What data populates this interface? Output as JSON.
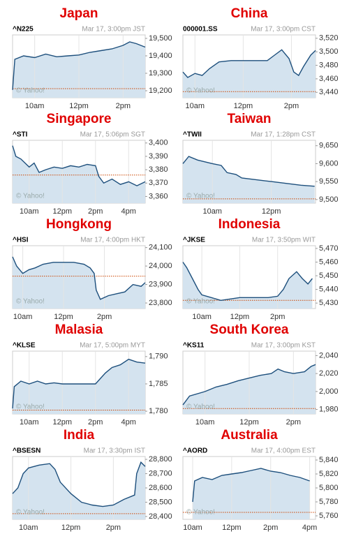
{
  "chart_data": [
    {
      "type": "area",
      "title": "Japan",
      "ticker": "^N225",
      "timestamp": "Mar 17, 3:00pm JST",
      "watermark": "© Yahoo!",
      "x": [
        9,
        9.1,
        9.5,
        10,
        10.5,
        11,
        11.5,
        12,
        12.5,
        13,
        13.5,
        14,
        14.3,
        14.6,
        15
      ],
      "values": [
        19205,
        19380,
        19400,
        19390,
        19410,
        19395,
        19400,
        19405,
        19420,
        19430,
        19440,
        19460,
        19480,
        19470,
        19450
      ],
      "previous_close": 19212,
      "xlim": [
        9,
        15
      ],
      "xticks": [
        {
          "value": 10,
          "label": "10am"
        },
        {
          "value": 12,
          "label": "12pm"
        },
        {
          "value": 14,
          "label": "2pm"
        }
      ],
      "ylim": [
        19160,
        19520
      ],
      "yticks": [
        {
          "value": 19200,
          "label": "19,200"
        },
        {
          "value": 19300,
          "label": "19,300"
        },
        {
          "value": 19400,
          "label": "19,400"
        },
        {
          "value": 19500,
          "label": "19,500"
        }
      ]
    },
    {
      "type": "area",
      "title": "China",
      "ticker": "000001.SS",
      "timestamp": "Mar 17, 3:00pm CST",
      "watermark": "© Yahoo!",
      "x": [
        9.5,
        9.7,
        10,
        10.3,
        10.6,
        11,
        11.5,
        12,
        12.5,
        13,
        13.3,
        13.6,
        13.9,
        14.1,
        14.3,
        14.5,
        14.8,
        15
      ],
      "values": [
        3470,
        3462,
        3468,
        3465,
        3475,
        3485,
        3487,
        3487,
        3487,
        3487,
        3495,
        3503,
        3490,
        3470,
        3465,
        3478,
        3495,
        3502
      ],
      "previous_close": 3441,
      "xlim": [
        9.5,
        15
      ],
      "xticks": [
        {
          "value": 10,
          "label": "10am"
        },
        {
          "value": 12,
          "label": "12pm"
        },
        {
          "value": 14,
          "label": "2pm"
        }
      ],
      "ylim": [
        3432,
        3525
      ],
      "yticks": [
        {
          "value": 3440,
          "label": "3,440"
        },
        {
          "value": 3460,
          "label": "3,460"
        },
        {
          "value": 3480,
          "label": "3,480"
        },
        {
          "value": 3500,
          "label": "3,500"
        },
        {
          "value": 3520,
          "label": "3,520"
        }
      ]
    },
    {
      "type": "area",
      "title": "Singapore",
      "ticker": "^STI",
      "timestamp": "Mar 17, 5:06pm SGT",
      "watermark": "© Yahoo!",
      "x": [
        9,
        9.2,
        9.5,
        10,
        10.3,
        10.6,
        11,
        11.5,
        12,
        12.5,
        13,
        13.5,
        14,
        14.2,
        14.5,
        15,
        15.5,
        16,
        16.5,
        17
      ],
      "values": [
        3398,
        3390,
        3388,
        3382,
        3385,
        3378,
        3380,
        3382,
        3381,
        3383,
        3382,
        3384,
        3383,
        3375,
        3370,
        3373,
        3369,
        3371,
        3368,
        3371
      ],
      "previous_close": 3376,
      "xlim": [
        9,
        17
      ],
      "xticks": [
        {
          "value": 10,
          "label": "10am"
        },
        {
          "value": 12,
          "label": "12pm"
        },
        {
          "value": 14,
          "label": "2pm"
        },
        {
          "value": 16,
          "label": "4pm"
        }
      ],
      "ylim": [
        3355,
        3402
      ],
      "yticks": [
        {
          "value": 3360,
          "label": "3,360"
        },
        {
          "value": 3370,
          "label": "3,370"
        },
        {
          "value": 3380,
          "label": "3,380"
        },
        {
          "value": 3390,
          "label": "3,390"
        },
        {
          "value": 3400,
          "label": "3,400"
        }
      ]
    },
    {
      "type": "area",
      "title": "Taiwan",
      "ticker": "^TWII",
      "timestamp": "Mar 17, 1:28pm CST",
      "watermark": "© Yahoo!",
      "x": [
        9,
        9.2,
        9.5,
        10,
        10.3,
        10.5,
        10.8,
        11,
        11.5,
        12,
        12.5,
        13,
        13.47
      ],
      "values": [
        9600,
        9620,
        9610,
        9600,
        9595,
        9575,
        9570,
        9560,
        9555,
        9550,
        9545,
        9540,
        9537
      ],
      "previous_close": 9502,
      "xlim": [
        9,
        13.5
      ],
      "xticks": [
        {
          "value": 10,
          "label": "10am"
        },
        {
          "value": 12,
          "label": "12pm"
        }
      ],
      "ylim": [
        9490,
        9665
      ],
      "yticks": [
        {
          "value": 9500,
          "label": "9,500"
        },
        {
          "value": 9550,
          "label": "9,550"
        },
        {
          "value": 9600,
          "label": "9,600"
        },
        {
          "value": 9650,
          "label": "9,650"
        }
      ]
    },
    {
      "type": "area",
      "title": "Hongkong",
      "ticker": "^HSI",
      "timestamp": "Mar 17, 4:00pm HKT",
      "watermark": "© Yahoo!",
      "x": [
        9.5,
        9.7,
        10,
        10.3,
        10.6,
        11,
        11.5,
        12,
        12.5,
        13,
        13.3,
        13.5,
        13.6,
        13.8,
        14.2,
        14.6,
        15,
        15.4,
        15.8,
        16
      ],
      "values": [
        24050,
        24000,
        23960,
        23980,
        23990,
        24010,
        24020,
        24020,
        24020,
        24010,
        23990,
        23960,
        23870,
        23820,
        23840,
        23850,
        23860,
        23900,
        23890,
        23910
      ],
      "previous_close": 23945,
      "xlim": [
        9.5,
        16
      ],
      "xticks": [
        {
          "value": 10,
          "label": "10am"
        },
        {
          "value": 12,
          "label": "12pm"
        },
        {
          "value": 14,
          "label": "2pm"
        }
      ],
      "ylim": [
        23770,
        24110
      ],
      "yticks": [
        {
          "value": 23800,
          "label": "23,800"
        },
        {
          "value": 23900,
          "label": "23,900"
        },
        {
          "value": 24000,
          "label": "24,000"
        },
        {
          "value": 24100,
          "label": "24,100"
        }
      ]
    },
    {
      "type": "area",
      "title": "Indonesia",
      "ticker": "^JKSE",
      "timestamp": "Mar 17, 3:50pm WIT",
      "watermark": "© Yahoo!",
      "x": [
        9,
        9.2,
        9.5,
        9.8,
        10,
        10.5,
        11,
        11.5,
        12,
        12.5,
        13,
        13.5,
        14,
        14.3,
        14.6,
        15,
        15.3,
        15.6,
        15.83
      ],
      "values": [
        5460,
        5456,
        5448,
        5440,
        5436,
        5434,
        5432,
        5433,
        5434,
        5434,
        5434,
        5434,
        5435,
        5440,
        5448,
        5453,
        5448,
        5444,
        5448
      ],
      "previous_close": 5432,
      "xlim": [
        9,
        16
      ],
      "xticks": [
        {
          "value": 10,
          "label": "10am"
        },
        {
          "value": 12,
          "label": "12pm"
        },
        {
          "value": 14,
          "label": "2pm"
        }
      ],
      "ylim": [
        5426,
        5472
      ],
      "yticks": [
        {
          "value": 5430,
          "label": "5,430"
        },
        {
          "value": 5440,
          "label": "5,440"
        },
        {
          "value": 5450,
          "label": "5,450"
        },
        {
          "value": 5460,
          "label": "5,460"
        },
        {
          "value": 5470,
          "label": "5,470"
        }
      ]
    },
    {
      "type": "area",
      "title": "Malasia",
      "ticker": "^KLSE",
      "timestamp": "Mar 17, 5:00pm MYT",
      "watermark": "© Yahoo!",
      "x": [
        9,
        9.1,
        9.5,
        10,
        10.5,
        11,
        11.5,
        12,
        12.5,
        13,
        14,
        14.3,
        14.6,
        15,
        15.5,
        16,
        16.5,
        17
      ],
      "values": [
        1780.5,
        1784.5,
        1785.5,
        1785,
        1785.5,
        1785,
        1785.2,
        1785,
        1785,
        1785,
        1785,
        1786,
        1787,
        1788,
        1788.5,
        1789.5,
        1789,
        1788.8
      ],
      "previous_close": 1780.2,
      "xlim": [
        9,
        17
      ],
      "xticks": [
        {
          "value": 10,
          "label": "10am"
        },
        {
          "value": 12,
          "label": "12pm"
        },
        {
          "value": 14,
          "label": "2pm"
        },
        {
          "value": 16,
          "label": "4pm"
        }
      ],
      "ylim": [
        1779.5,
        1791
      ],
      "yticks": [
        {
          "value": 1780,
          "label": "1,780"
        },
        {
          "value": 1785,
          "label": "1,785"
        },
        {
          "value": 1790,
          "label": "1,790"
        }
      ]
    },
    {
      "type": "area",
      "title": "South Korea",
      "ticker": "^KS11",
      "timestamp": "Mar 17, 3:00pm KST",
      "watermark": "© Yahoo!",
      "x": [
        9,
        9.3,
        10,
        10.5,
        11,
        11.5,
        12,
        12.5,
        13,
        13.3,
        13.6,
        14,
        14.5,
        14.8,
        15
      ],
      "values": [
        1985,
        1995,
        2000,
        2005,
        2008,
        2012,
        2015,
        2018,
        2020,
        2025,
        2022,
        2020,
        2022,
        2028,
        2030
      ],
      "previous_close": 1981,
      "xlim": [
        9,
        15
      ],
      "xticks": [
        {
          "value": 10,
          "label": "10am"
        },
        {
          "value": 12,
          "label": "12pm"
        },
        {
          "value": 14,
          "label": "2pm"
        }
      ],
      "ylim": [
        1975,
        2045
      ],
      "yticks": [
        {
          "value": 1980,
          "label": "1,980"
        },
        {
          "value": 2000,
          "label": "2,000"
        },
        {
          "value": 2020,
          "label": "2,020"
        },
        {
          "value": 2040,
          "label": "2,040"
        }
      ]
    },
    {
      "type": "area",
      "title": "India",
      "ticker": "^BSESN",
      "timestamp": "Mar 17, 3:30pm IST",
      "watermark": "© Yahoo!",
      "x": [
        9.25,
        9.5,
        9.75,
        10,
        10.5,
        11,
        11.25,
        11.5,
        12,
        12.5,
        13,
        13.5,
        14,
        14.5,
        15,
        15.1,
        15.3,
        15.5
      ],
      "values": [
        28560,
        28600,
        28700,
        28740,
        28760,
        28770,
        28730,
        28640,
        28560,
        28500,
        28480,
        28470,
        28480,
        28520,
        28550,
        28700,
        28780,
        28750
      ],
      "previous_close": 28420,
      "xlim": [
        9.25,
        15.5
      ],
      "xticks": [
        {
          "value": 10,
          "label": "10am"
        },
        {
          "value": 12,
          "label": "12pm"
        },
        {
          "value": 14,
          "label": "2pm"
        }
      ],
      "ylim": [
        28380,
        28820
      ],
      "yticks": [
        {
          "value": 28400,
          "label": "28,400"
        },
        {
          "value": 28500,
          "label": "28,500"
        },
        {
          "value": 28600,
          "label": "28,600"
        },
        {
          "value": 28700,
          "label": "28,700"
        },
        {
          "value": 28800,
          "label": "28,800"
        }
      ]
    },
    {
      "type": "area",
      "title": "Australia",
      "ticker": "^AORD",
      "timestamp": "Mar 17, 4:00pm EST",
      "watermark": "© Yahoo!",
      "x": [
        10,
        10.1,
        10.5,
        11,
        11.5,
        12,
        12.5,
        13,
        13.5,
        14,
        14.5,
        15,
        15.5,
        16
      ],
      "values": [
        5780,
        5810,
        5815,
        5812,
        5818,
        5820,
        5822,
        5825,
        5828,
        5824,
        5822,
        5818,
        5815,
        5810
      ],
      "previous_close": 5765,
      "xlim": [
        9.5,
        16.3
      ],
      "xticks": [
        {
          "value": 10,
          "label": "10am"
        },
        {
          "value": 12,
          "label": "12pm"
        },
        {
          "value": 14,
          "label": "2pm"
        },
        {
          "value": 16,
          "label": "4pm"
        }
      ],
      "ylim": [
        5755,
        5845
      ],
      "yticks": [
        {
          "value": 5760,
          "label": "5,760"
        },
        {
          "value": 5780,
          "label": "5,780"
        },
        {
          "value": 5800,
          "label": "5,800"
        },
        {
          "value": 5820,
          "label": "5,820"
        },
        {
          "value": 5840,
          "label": "5,840"
        }
      ]
    }
  ]
}
